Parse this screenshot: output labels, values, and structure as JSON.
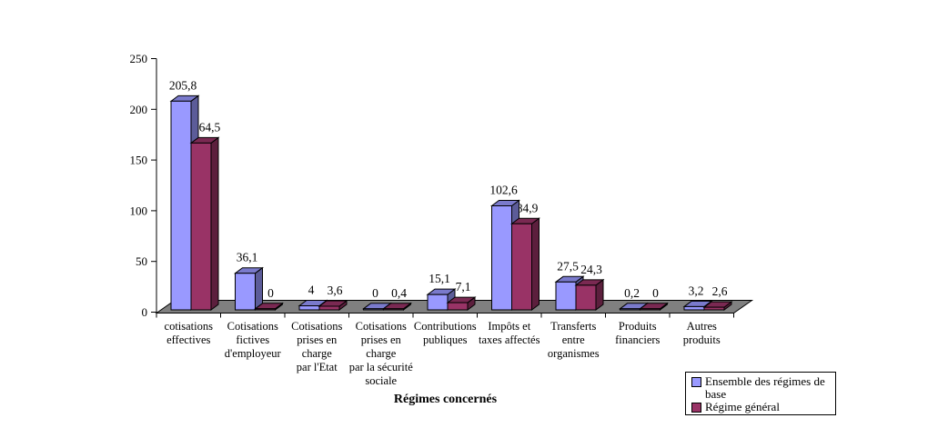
{
  "chart_data": {
    "type": "bar",
    "style": "3d-clustered",
    "title": "",
    "xlabel": "Régimes concernés",
    "ylabel": "",
    "ylim": [
      0,
      250
    ],
    "yticks": [
      0,
      50,
      100,
      150,
      200,
      250
    ],
    "grid": false,
    "legend_position": "bottom-right",
    "categories": [
      "cotisations effectives",
      "Cotisations fictives d'employeur",
      "Cotisations prises en charge par l'Etat",
      "Cotisations prises en charge par la sécurité sociale",
      "Contributions publiques",
      "Impôts et taxes affectés",
      "Transferts entre organismes",
      "Produits financiers",
      "Autres produits"
    ],
    "category_lines": [
      [
        "cotisations",
        "effectives"
      ],
      [
        "Cotisations",
        "fictives",
        "d'employeur"
      ],
      [
        "Cotisations",
        "prises en",
        "charge",
        "par l'Etat"
      ],
      [
        "Cotisations",
        "prises en",
        "charge",
        "par la sécurité",
        "sociale"
      ],
      [
        "Contributions",
        "publiques"
      ],
      [
        "Impôts et",
        "taxes affectés"
      ],
      [
        "Transferts",
        "entre",
        "organismes"
      ],
      [
        "Produits",
        "financiers"
      ],
      [
        "Autres",
        "produits"
      ]
    ],
    "series": [
      {
        "name": "Ensemble des régimes de base",
        "values": [
          205.8,
          36.1,
          4,
          0,
          15.1,
          102.6,
          27.5,
          0.2,
          3.2
        ],
        "labels": [
          "205,8",
          "36,1",
          "4",
          "0",
          "15,1",
          "102,6",
          "27,5",
          "0,2",
          "3,2"
        ],
        "color": "#9999FF",
        "color_top": "#7A7ACC",
        "color_side": "#5C5C99"
      },
      {
        "name": "Régime général",
        "values": [
          164.5,
          0,
          3.6,
          0.4,
          7.1,
          84.9,
          24.3,
          0,
          2.6
        ],
        "labels": [
          "164,5",
          "0",
          "3,6",
          "0,4",
          "7,1",
          "84,9",
          "24,3",
          "0",
          "2,6"
        ],
        "color": "#993366",
        "color_top": "#7A2952",
        "color_side": "#5C1F3D"
      }
    ],
    "floor_color": "#808080",
    "axis_color": "#000000",
    "background_color": "#FFFFFF"
  },
  "legend": {
    "items": [
      {
        "label": "Ensemble des régimes de base"
      },
      {
        "label": "Régime général"
      }
    ]
  }
}
